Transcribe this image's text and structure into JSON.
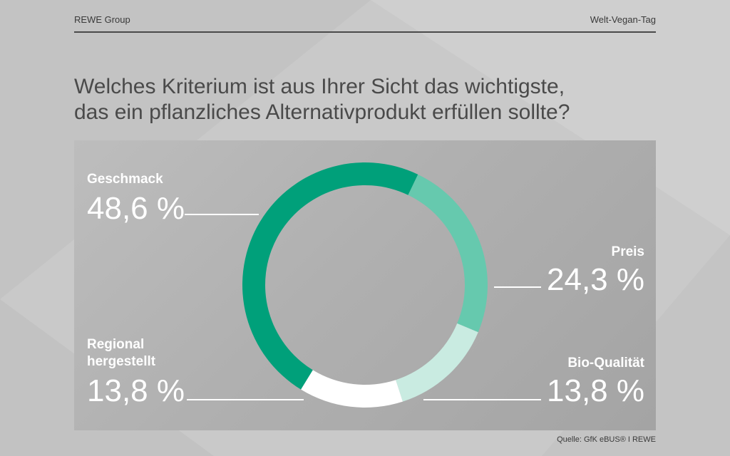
{
  "header": {
    "brand": "REWE Group",
    "topic": "Welt-Vegan-Tag"
  },
  "title": {
    "line1": "Welches Kriterium ist aus Ihrer Sicht das wichtigste,",
    "line2": "das ein pflanzliches Alternativprodukt erfüllen sollte?"
  },
  "source": "Quelle: GfK eBUS® I REWE",
  "colors": {
    "geschmack": "#00a07a",
    "preis": "#66c9ae",
    "bio": "#c9ebe1",
    "regional": "#ffffff",
    "label_text": "#ffffff"
  },
  "chart_data": {
    "type": "pie",
    "donut": true,
    "title": "Welches Kriterium ist aus Ihrer Sicht das wichtigste, das ein pflanzliches Alternativprodukt erfüllen sollte?",
    "unit": "%",
    "slices": [
      {
        "name": "Geschmack",
        "value": 48.6,
        "label": "48,6 %",
        "color": "#00a07a"
      },
      {
        "name": "Preis",
        "value": 24.3,
        "label": "24,3 %",
        "color": "#66c9ae"
      },
      {
        "name": "Bio-Qualität",
        "value": 13.8,
        "label": "13,8 %",
        "color": "#c9ebe1"
      },
      {
        "name": "Regional hergestellt",
        "value": 13.8,
        "label": "13,8 %",
        "color": "#ffffff"
      }
    ],
    "labels": {
      "geschmack": {
        "name": "Geschmack",
        "value": "48,6 %"
      },
      "preis": {
        "name": "Preis",
        "value": "24,3 %"
      },
      "bio": {
        "name": "Bio-Qualität",
        "value": "13,8 %"
      },
      "regional": {
        "name_line1": "Regional",
        "name_line2": "hergestellt",
        "value": "13,8 %"
      }
    }
  }
}
